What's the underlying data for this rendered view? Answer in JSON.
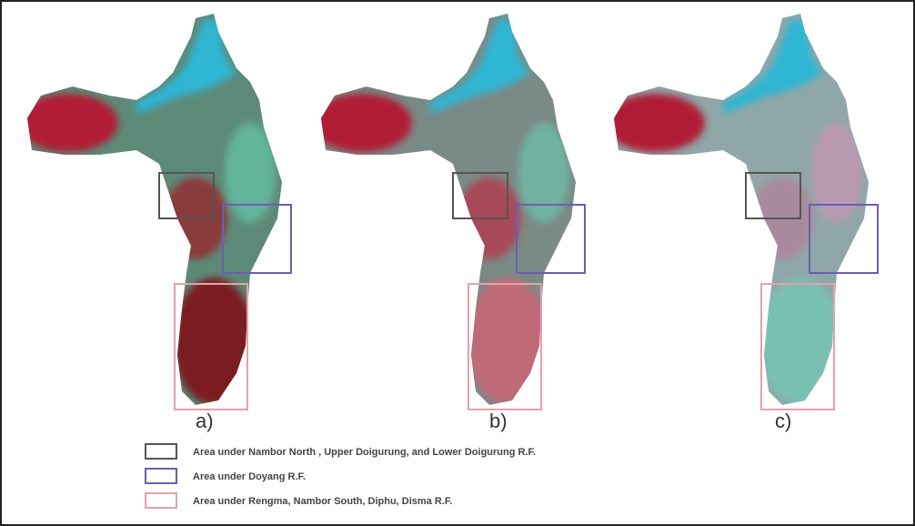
{
  "panels": [
    {
      "label": "a)"
    },
    {
      "label": "b)"
    },
    {
      "label": "c)"
    }
  ],
  "legend": [
    {
      "text": "Area under Nambor North , Upper Doigurung, and Lower Doigurung R.F."
    },
    {
      "text": "Area under Doyang R.F."
    },
    {
      "text": "Area under Rengma, Nambor South, Diphu, Disma R.F."
    }
  ]
}
